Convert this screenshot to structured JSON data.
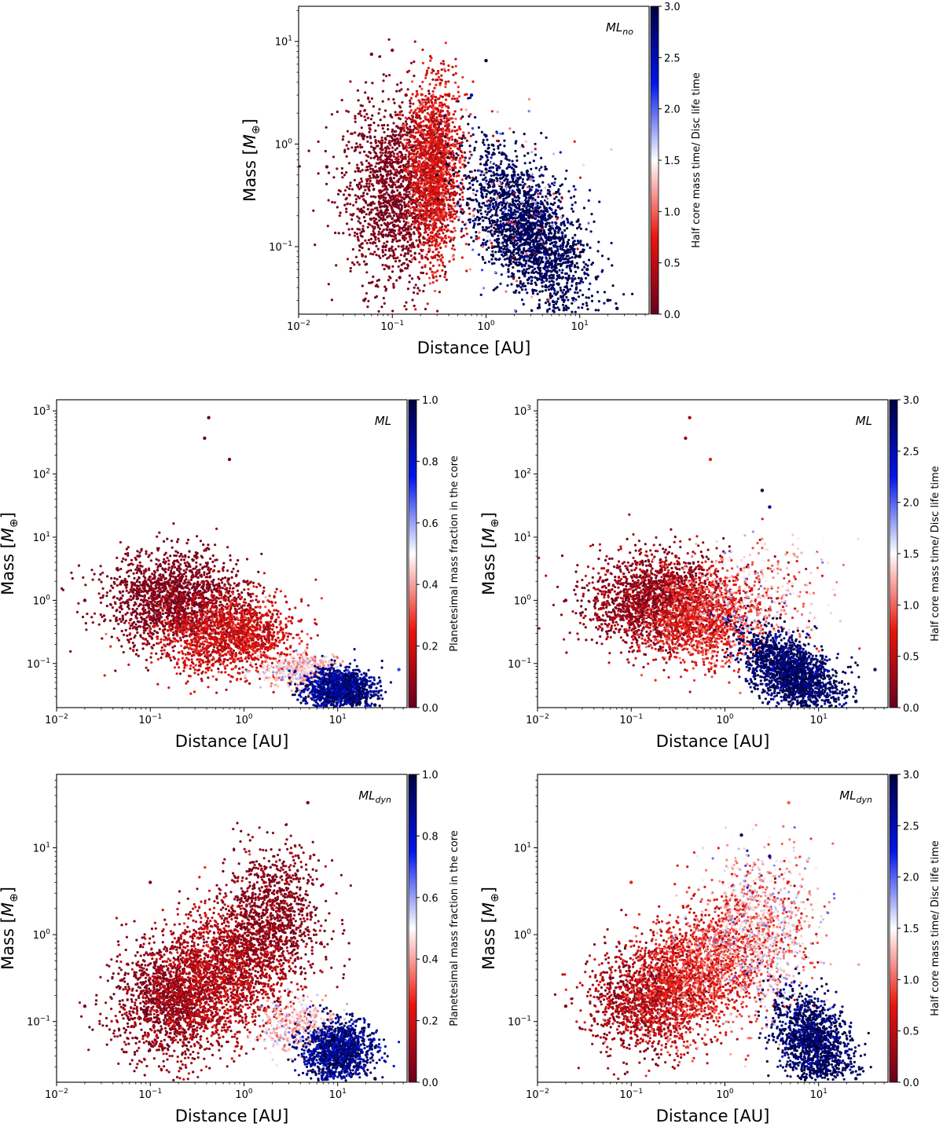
{
  "figure": {
    "panels": [
      {
        "id": "top",
        "model": "ML",
        "model_sub": "no",
        "colorbar_label": "Half core mass time/ Disc life time",
        "x_label": "Distance [AU]",
        "y_label": "Mass [",
        "y_label_unit": "M",
        "y_label_sub": "⊕",
        "y_label_end": "]"
      },
      {
        "id": "mid-left",
        "model": "ML",
        "model_sub": "",
        "colorbar_label": "Planetesimal mass fraction in the core",
        "x_label": "Distance [AU]",
        "y_label": "Mass [",
        "y_label_unit": "M",
        "y_label_sub": "⊕",
        "y_label_end": "]"
      },
      {
        "id": "mid-right",
        "model": "ML",
        "model_sub": "",
        "colorbar_label": "Half core mass time/ Disc life time",
        "x_label": "Distance [AU]",
        "y_label": "Mass [",
        "y_label_unit": "M",
        "y_label_sub": "⊕",
        "y_label_end": "]"
      },
      {
        "id": "bot-left",
        "model": "ML",
        "model_sub": "dyn",
        "colorbar_label": "Planetesimal mass fraction in the core",
        "x_label": "Distance [AU]",
        "y_label": "Mass [",
        "y_label_unit": "M",
        "y_label_sub": "⊕",
        "y_label_end": "]"
      },
      {
        "id": "bot-right",
        "model": "ML",
        "model_sub": "dyn",
        "colorbar_label": "Half core mass time/ Disc life time",
        "x_label": "Distance [AU]",
        "y_label": "Mass [",
        "y_label_unit": "M",
        "y_label_sub": "⊕",
        "y_label_end": "]"
      }
    ]
  },
  "chart_data": [
    {
      "type": "scatter",
      "panel": "top",
      "title": "",
      "annotation": "ML_no",
      "xlabel": "Distance [AU]",
      "ylabel": "Mass [M_⊕]",
      "xscale": "log",
      "yscale": "log",
      "xlim": [
        0.01,
        55
      ],
      "ylim": [
        0.022,
        22
      ],
      "xticks": [
        {
          "v": 0.01,
          "b": "10",
          "e": "−2"
        },
        {
          "v": 0.1,
          "b": "10",
          "e": "−1"
        },
        {
          "v": 1,
          "b": "10",
          "e": "0"
        },
        {
          "v": 10,
          "b": "10",
          "e": "1"
        }
      ],
      "yticks": [
        {
          "v": 0.1,
          "b": "10",
          "e": "−1"
        },
        {
          "v": 1,
          "b": "10",
          "e": "0"
        },
        {
          "v": 10,
          "b": "10",
          "e": "1"
        }
      ],
      "colorbar": {
        "label": "Half core mass time/ Disc life time",
        "min": 0,
        "max": 3,
        "ticks": [
          "0.0",
          "0.5",
          "1.0",
          "1.5",
          "2.0",
          "2.5",
          "3.0"
        ],
        "colors": [
          "#67001f",
          "#e8150a",
          "#ffffff",
          "#0015e8",
          "#00003f"
        ]
      },
      "series": [
        {
          "x": [
            0.02,
            0.05,
            0.08,
            0.12,
            0.15,
            0.2,
            0.25,
            0.3,
            0.4,
            0.06,
            0.1,
            0.14,
            0.05
          ],
          "y": [
            0.6,
            1.2,
            0.1,
            0.05,
            0.4,
            1.5,
            0.2,
            0.8,
            2.0,
            7.5,
            8.2,
            3.0,
            0.03
          ],
          "value": [
            0.05,
            0.1,
            0.1,
            0.1,
            0.2,
            0.3,
            0.4,
            0.6,
            0.8,
            0.1,
            0.2,
            0.2,
            0.1
          ]
        },
        {
          "x": [
            0.7,
            1.0,
            1.5,
            2.0,
            3.0,
            4.0,
            6.0,
            8.0,
            10,
            12,
            15,
            20,
            25,
            1.0
          ],
          "y": [
            3.0,
            1.2,
            0.8,
            0.5,
            0.3,
            0.2,
            0.15,
            0.1,
            0.08,
            0.06,
            0.05,
            0.03,
            0.025,
            6.5
          ],
          "value": [
            2.5,
            2.8,
            2.9,
            2.9,
            2.8,
            2.9,
            2.9,
            3.0,
            3.0,
            2.9,
            2.9,
            3.0,
            3.0,
            3.0
          ]
        }
      ]
    },
    {
      "type": "scatter",
      "panel": "mid-left",
      "title": "",
      "annotation": "ML",
      "xlabel": "Distance [AU]",
      "ylabel": "Mass [M_⊕]",
      "xscale": "log",
      "yscale": "log",
      "xlim": [
        0.01,
        55
      ],
      "ylim": [
        0.02,
        1500
      ],
      "xticks": [
        {
          "v": 0.01,
          "b": "10",
          "e": "−2"
        },
        {
          "v": 0.1,
          "b": "10",
          "e": "−1"
        },
        {
          "v": 1,
          "b": "10",
          "e": "0"
        },
        {
          "v": 10,
          "b": "10",
          "e": "1"
        }
      ],
      "yticks": [
        {
          "v": 0.1,
          "b": "10",
          "e": "−1"
        },
        {
          "v": 1,
          "b": "10",
          "e": "0"
        },
        {
          "v": 10,
          "b": "10",
          "e": "1"
        },
        {
          "v": 100,
          "b": "10",
          "e": "2"
        },
        {
          "v": 1000,
          "b": "10",
          "e": "3"
        }
      ],
      "colorbar": {
        "label": "Planetesimal mass fraction in the core",
        "min": 0,
        "max": 1,
        "ticks": [
          "0.0",
          "0.2",
          "0.4",
          "0.6",
          "0.8",
          "1.0"
        ],
        "colors": [
          "#67001f",
          "#e8150a",
          "#ffffff",
          "#0015e8",
          "#00003f"
        ]
      },
      "series": [
        {
          "x": [
            0.02,
            0.05,
            0.1,
            0.2,
            0.3,
            0.5,
            0.8,
            1.0,
            2.0,
            3.0,
            0.38,
            0.42,
            0.7
          ],
          "y": [
            1.0,
            2.0,
            0.5,
            1.0,
            5.0,
            0.8,
            0.3,
            2.0,
            0.2,
            0.1,
            370,
            780,
            170
          ],
          "value": [
            0.03,
            0.05,
            0.1,
            0.05,
            0.03,
            0.1,
            0.2,
            0.1,
            0.25,
            0.35,
            0.02,
            0.02,
            0.02
          ]
        },
        {
          "x": [
            4.0,
            6.0,
            8.0,
            10,
            12,
            15,
            20,
            25,
            45
          ],
          "y": [
            0.06,
            0.05,
            0.04,
            0.035,
            0.03,
            0.028,
            0.025,
            0.022,
            0.08
          ],
          "value": [
            0.6,
            0.75,
            0.85,
            0.9,
            0.95,
            0.97,
            0.98,
            1.0,
            0.7
          ]
        }
      ]
    },
    {
      "type": "scatter",
      "panel": "mid-right",
      "title": "",
      "annotation": "ML",
      "xlabel": "Distance [AU]",
      "ylabel": "Mass [M_⊕]",
      "xscale": "log",
      "yscale": "log",
      "xlim": [
        0.01,
        55
      ],
      "ylim": [
        0.02,
        1500
      ],
      "xticks": [
        {
          "v": 0.01,
          "b": "10",
          "e": "−2"
        },
        {
          "v": 0.1,
          "b": "10",
          "e": "−1"
        },
        {
          "v": 1,
          "b": "10",
          "e": "0"
        },
        {
          "v": 10,
          "b": "10",
          "e": "1"
        }
      ],
      "yticks": [
        {
          "v": 0.1,
          "b": "10",
          "e": "−1"
        },
        {
          "v": 1,
          "b": "10",
          "e": "0"
        },
        {
          "v": 10,
          "b": "10",
          "e": "1"
        },
        {
          "v": 100,
          "b": "10",
          "e": "2"
        },
        {
          "v": 1000,
          "b": "10",
          "e": "3"
        }
      ],
      "colorbar": {
        "label": "Half core mass time/ Disc life time",
        "min": 0,
        "max": 3,
        "ticks": [
          "0.0",
          "0.5",
          "1.0",
          "1.5",
          "2.0",
          "2.5",
          "3.0"
        ],
        "colors": [
          "#67001f",
          "#e8150a",
          "#ffffff",
          "#0015e8",
          "#00003f"
        ]
      },
      "series": [
        {
          "x": [
            0.02,
            0.05,
            0.1,
            0.2,
            0.3,
            0.5,
            0.8,
            0.38,
            0.42,
            0.7
          ],
          "y": [
            1.0,
            2.0,
            0.5,
            1.0,
            5.0,
            0.8,
            0.3,
            370,
            780,
            170
          ],
          "value": [
            0.1,
            0.2,
            0.3,
            0.4,
            0.5,
            0.7,
            0.9,
            0.3,
            0.4,
            0.8
          ]
        },
        {
          "x": [
            1.0,
            1.5,
            2.0,
            3.0,
            5.0,
            8.0,
            10,
            15,
            20,
            25,
            40,
            2.5,
            3.0
          ],
          "y": [
            0.5,
            0.3,
            0.2,
            1.0,
            0.1,
            0.06,
            0.05,
            0.035,
            0.03,
            0.025,
            0.08,
            55,
            30
          ],
          "value": [
            2.0,
            2.5,
            2.8,
            1.5,
            2.9,
            3.0,
            3.0,
            2.9,
            3.0,
            3.0,
            2.8,
            3.0,
            2.7
          ]
        }
      ]
    },
    {
      "type": "scatter",
      "panel": "bot-left",
      "title": "",
      "annotation": "ML_dyn",
      "xlabel": "Distance [AU]",
      "ylabel": "Mass [M_⊕]",
      "xscale": "log",
      "yscale": "log",
      "xlim": [
        0.01,
        55
      ],
      "ylim": [
        0.02,
        70
      ],
      "xticks": [
        {
          "v": 0.01,
          "b": "10",
          "e": "−2"
        },
        {
          "v": 0.1,
          "b": "10",
          "e": "−1"
        },
        {
          "v": 1,
          "b": "10",
          "e": "0"
        },
        {
          "v": 10,
          "b": "10",
          "e": "1"
        }
      ],
      "yticks": [
        {
          "v": 0.1,
          "b": "10",
          "e": "−1"
        },
        {
          "v": 1,
          "b": "10",
          "e": "0"
        },
        {
          "v": 10,
          "b": "10",
          "e": "1"
        }
      ],
      "colorbar": {
        "label": "Planetesimal mass fraction in the core",
        "min": 0,
        "max": 1,
        "ticks": [
          "0.0",
          "0.2",
          "0.4",
          "0.6",
          "0.8",
          "1.0"
        ],
        "colors": [
          "#67001f",
          "#e8150a",
          "#ffffff",
          "#0015e8",
          "#00003f"
        ]
      },
      "series": [
        {
          "x": [
            0.02,
            0.05,
            0.1,
            0.2,
            0.3,
            0.5,
            0.8,
            1.0,
            2.0,
            3.0,
            4.8
          ],
          "y": [
            0.15,
            0.3,
            4.0,
            0.2,
            0.5,
            0.3,
            1.0,
            3.0,
            2.0,
            0.5,
            33
          ],
          "value": [
            0.05,
            0.1,
            0.05,
            0.15,
            0.15,
            0.2,
            0.15,
            0.1,
            0.1,
            0.25,
            0.05
          ]
        },
        {
          "x": [
            4.0,
            6.0,
            8.0,
            10,
            12,
            15,
            20,
            25
          ],
          "y": [
            0.06,
            0.05,
            0.045,
            0.04,
            0.035,
            0.03,
            0.025,
            0.022
          ],
          "value": [
            0.6,
            0.75,
            0.85,
            0.9,
            0.95,
            0.97,
            0.98,
            1.0
          ]
        }
      ]
    },
    {
      "type": "scatter",
      "panel": "bot-right",
      "title": "",
      "annotation": "ML_dyn",
      "xlabel": "Distance [AU]",
      "ylabel": "Mass [M_⊕]",
      "xscale": "log",
      "yscale": "log",
      "xlim": [
        0.01,
        55
      ],
      "ylim": [
        0.02,
        70
      ],
      "xticks": [
        {
          "v": 0.01,
          "b": "10",
          "e": "−2"
        },
        {
          "v": 0.1,
          "b": "10",
          "e": "−1"
        },
        {
          "v": 1,
          "b": "10",
          "e": "0"
        },
        {
          "v": 10,
          "b": "10",
          "e": "1"
        }
      ],
      "yticks": [
        {
          "v": 0.1,
          "b": "10",
          "e": "−1"
        },
        {
          "v": 1,
          "b": "10",
          "e": "0"
        },
        {
          "v": 10,
          "b": "10",
          "e": "1"
        }
      ],
      "colorbar": {
        "label": "Half core mass time/ Disc life time",
        "min": 0,
        "max": 3,
        "ticks": [
          "0.0",
          "0.5",
          "1.0",
          "1.5",
          "2.0",
          "2.5",
          "3.0"
        ],
        "colors": [
          "#67001f",
          "#e8150a",
          "#ffffff",
          "#0015e8",
          "#00003f"
        ]
      },
      "series": [
        {
          "x": [
            0.02,
            0.05,
            0.1,
            0.2,
            0.3,
            0.5,
            0.8,
            1.0,
            2.0,
            3.0,
            4.8
          ],
          "y": [
            0.15,
            0.3,
            4.0,
            0.2,
            0.5,
            0.3,
            1.0,
            3.0,
            2.0,
            0.5,
            33
          ],
          "value": [
            0.2,
            0.4,
            0.8,
            0.6,
            0.8,
            1.0,
            1.2,
            1.3,
            1.4,
            1.6,
            1.0
          ]
        },
        {
          "x": [
            5.0,
            7.0,
            10,
            12,
            15,
            20,
            25,
            1.5,
            3.0
          ],
          "y": [
            0.1,
            0.07,
            0.05,
            0.04,
            0.035,
            0.03,
            0.022,
            14,
            8
          ],
          "value": [
            2.8,
            2.9,
            3.0,
            3.0,
            2.9,
            3.0,
            3.0,
            2.9,
            2.6
          ]
        }
      ]
    }
  ]
}
